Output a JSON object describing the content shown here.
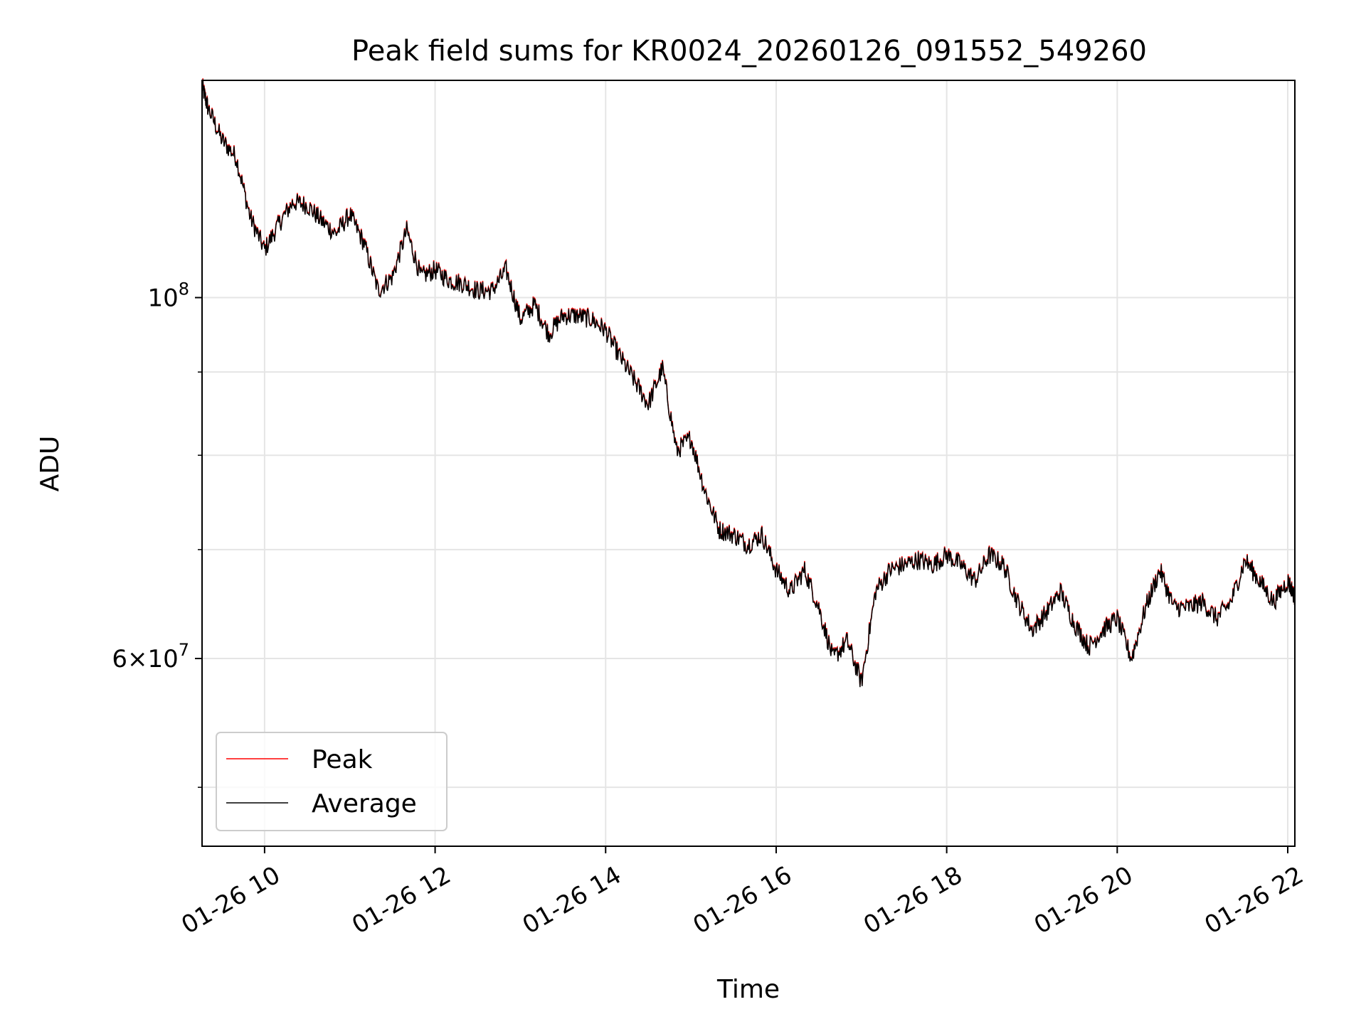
{
  "chart_data": {
    "type": "line",
    "title": "Peak field sums for KR0024_20260126_091552_549260",
    "xlabel": "Time",
    "ylabel": "ADU",
    "y_scale": "log",
    "ylim": [
      46000000,
      136000000
    ],
    "xlim": [
      "2026-01-26 09:16",
      "2026-01-26 22:05"
    ],
    "grid": true,
    "legend_position": "lower-left",
    "x_ticks": [
      {
        "value": "2026-01-26 10:00",
        "label": "01-26 10"
      },
      {
        "value": "2026-01-26 12:00",
        "label": "01-26 12"
      },
      {
        "value": "2026-01-26 14:00",
        "label": "01-26 14"
      },
      {
        "value": "2026-01-26 16:00",
        "label": "01-26 16"
      },
      {
        "value": "2026-01-26 18:00",
        "label": "01-26 18"
      },
      {
        "value": "2026-01-26 20:00",
        "label": "01-26 20"
      },
      {
        "value": "2026-01-26 22:00",
        "label": "01-26 22"
      }
    ],
    "y_major_ticks": [
      {
        "value": 60000000,
        "label_mantissa": "6",
        "label_base": "10",
        "label_exp": "7"
      },
      {
        "value": 100000000,
        "label_mantissa": "",
        "label_base": "10",
        "label_exp": "8"
      }
    ],
    "y_minor_gridlines": [
      70000000,
      80000000,
      90000000
    ],
    "series": [
      {
        "name": "Peak",
        "color": "#ff0000",
        "points": [
          [
            "2026-01-26 09:16",
            135000000
          ],
          [
            "2026-01-26 09:20",
            131000000
          ],
          [
            "2026-01-26 09:30",
            125000000
          ],
          [
            "2026-01-26 09:40",
            122000000
          ],
          [
            "2026-01-26 09:50",
            112000000
          ],
          [
            "2026-01-26 10:00",
            107000000
          ],
          [
            "2026-01-26 10:10",
            111000000
          ],
          [
            "2026-01-26 10:20",
            114500000
          ],
          [
            "2026-01-26 10:30",
            114000000
          ],
          [
            "2026-01-26 10:40",
            111500000
          ],
          [
            "2026-01-26 10:50",
            109500000
          ],
          [
            "2026-01-26 11:00",
            112500000
          ],
          [
            "2026-01-26 11:10",
            108000000
          ],
          [
            "2026-01-26 11:20",
            101000000
          ],
          [
            "2026-01-26 11:30",
            103000000
          ],
          [
            "2026-01-26 11:40",
            110000000
          ],
          [
            "2026-01-26 11:50",
            103000000
          ],
          [
            "2026-01-26 12:00",
            104000000
          ],
          [
            "2026-01-26 12:10",
            102500000
          ],
          [
            "2026-01-26 12:20",
            102000000
          ],
          [
            "2026-01-26 12:30",
            101000000
          ],
          [
            "2026-01-26 12:40",
            101000000
          ],
          [
            "2026-01-26 12:50",
            104000000
          ],
          [
            "2026-01-26 13:00",
            97000000
          ],
          [
            "2026-01-26 13:10",
            99000000
          ],
          [
            "2026-01-26 13:20",
            95000000
          ],
          [
            "2026-01-26 13:30",
            97500000
          ],
          [
            "2026-01-26 13:40",
            97500000
          ],
          [
            "2026-01-26 13:50",
            97000000
          ],
          [
            "2026-01-26 14:00",
            95500000
          ],
          [
            "2026-01-26 14:10",
            92000000
          ],
          [
            "2026-01-26 14:20",
            89000000
          ],
          [
            "2026-01-26 14:30",
            86000000
          ],
          [
            "2026-01-26 14:40",
            90500000
          ],
          [
            "2026-01-26 14:50",
            80500000
          ],
          [
            "2026-01-26 15:00",
            82000000
          ],
          [
            "2026-01-26 15:10",
            76000000
          ],
          [
            "2026-01-26 15:20",
            72000000
          ],
          [
            "2026-01-26 15:30",
            71500000
          ],
          [
            "2026-01-26 15:40",
            70500000
          ],
          [
            "2026-01-26 15:50",
            71500000
          ],
          [
            "2026-01-26 16:00",
            68000000
          ],
          [
            "2026-01-26 16:10",
            66000000
          ],
          [
            "2026-01-26 16:20",
            68000000
          ],
          [
            "2026-01-26 16:30",
            64500000
          ],
          [
            "2026-01-26 16:40",
            60000000
          ],
          [
            "2026-01-26 16:50",
            61500000
          ],
          [
            "2026-01-26 17:00",
            58000000
          ],
          [
            "2026-01-26 17:10",
            66000000
          ],
          [
            "2026-01-26 17:20",
            68000000
          ],
          [
            "2026-01-26 17:30",
            68500000
          ],
          [
            "2026-01-26 17:40",
            69000000
          ],
          [
            "2026-01-26 17:50",
            68500000
          ],
          [
            "2026-01-26 18:00",
            69500000
          ],
          [
            "2026-01-26 18:10",
            68500000
          ],
          [
            "2026-01-26 18:20",
            67000000
          ],
          [
            "2026-01-26 18:30",
            69500000
          ],
          [
            "2026-01-26 18:40",
            68500000
          ],
          [
            "2026-01-26 18:50",
            65000000
          ],
          [
            "2026-01-26 19:00",
            62500000
          ],
          [
            "2026-01-26 19:10",
            64000000
          ],
          [
            "2026-01-26 19:20",
            66000000
          ],
          [
            "2026-01-26 19:30",
            63000000
          ],
          [
            "2026-01-26 19:40",
            61000000
          ],
          [
            "2026-01-26 19:50",
            62500000
          ],
          [
            "2026-01-26 20:00",
            63500000
          ],
          [
            "2026-01-26 20:10",
            60000000
          ],
          [
            "2026-01-26 20:20",
            64500000
          ],
          [
            "2026-01-26 20:30",
            68000000
          ],
          [
            "2026-01-26 20:40",
            64500000
          ],
          [
            "2026-01-26 20:50",
            64500000
          ],
          [
            "2026-01-26 21:00",
            65000000
          ],
          [
            "2026-01-26 21:10",
            63500000
          ],
          [
            "2026-01-26 21:20",
            65000000
          ],
          [
            "2026-01-26 21:30",
            69000000
          ],
          [
            "2026-01-26 21:40",
            67000000
          ],
          [
            "2026-01-26 21:50",
            65000000
          ],
          [
            "2026-01-26 22:00",
            67000000
          ],
          [
            "2026-01-26 22:05",
            65500000
          ]
        ]
      },
      {
        "name": "Average",
        "color": "#000000"
      }
    ]
  }
}
